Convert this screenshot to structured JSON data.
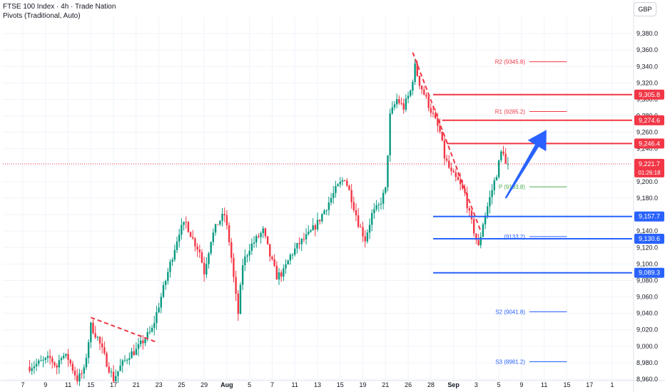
{
  "header": {
    "title": "FTSE 100 Index · 4h · Trade Nation",
    "indicator": "Pivots (Traditional, Auto)"
  },
  "currency_button": "GBP",
  "colors": {
    "up": "#089981",
    "down": "#f23645",
    "blue_level": "#2962ff",
    "red_level": "#f23645",
    "pivot_green": "#4caf50",
    "arrow": "#2962ff",
    "grid": "#f0f3fa",
    "axis_text": "#131722"
  },
  "chart_data": {
    "type": "candlestick",
    "title": "FTSE 100 Index · 4h · Trade Nation",
    "ylim": [
      8960,
      9400
    ],
    "y_ticks": [
      8960,
      8980,
      9000,
      9020,
      9040,
      9060,
      9080,
      9100,
      9120,
      9140,
      9160,
      9180,
      9200,
      9220,
      9240,
      9260,
      9280,
      9300,
      9320,
      9340,
      9360,
      9380
    ],
    "y_tick_labels": [
      "8,960.0",
      "8,980.0",
      "9,000.0",
      "9,020.0",
      "9,040.0",
      "9,060.0",
      "9,080.0",
      "9,100.0",
      "9,120.0",
      "9,140.0",
      "9,160.0",
      "9,180.0",
      "9,200.0",
      "9,220.0",
      "9,240.0",
      "9,260.0",
      "9,280.0",
      "9,300.0",
      "9,320.0",
      "9,340.0",
      "9,360.0",
      "9,380.0"
    ],
    "x_labels": [
      {
        "label": "7",
        "t": 0
      },
      {
        "label": "9",
        "t": 2
      },
      {
        "label": "11",
        "t": 4
      },
      {
        "label": "15",
        "t": 6
      },
      {
        "label": "17",
        "t": 8
      },
      {
        "label": "21",
        "t": 10
      },
      {
        "label": "23",
        "t": 12
      },
      {
        "label": "25",
        "t": 14
      },
      {
        "label": "29",
        "t": 16
      },
      {
        "label": "Aug",
        "t": 18
      },
      {
        "label": "5",
        "t": 20
      },
      {
        "label": "7",
        "t": 22
      },
      {
        "label": "11",
        "t": 24
      },
      {
        "label": "13",
        "t": 26
      },
      {
        "label": "15",
        "t": 28
      },
      {
        "label": "19",
        "t": 30
      },
      {
        "label": "21",
        "t": 32
      },
      {
        "label": "26",
        "t": 34
      },
      {
        "label": "28",
        "t": 36
      },
      {
        "label": "Sep",
        "t": 38
      },
      {
        "label": "3",
        "t": 40
      },
      {
        "label": "5",
        "t": 42
      },
      {
        "label": "9",
        "t": 44
      },
      {
        "label": "11",
        "t": 46
      },
      {
        "label": "15",
        "t": 48
      },
      {
        "label": "17",
        "t": 50
      },
      {
        "label": "1",
        "t": 52
      }
    ],
    "last_t": 42.8,
    "price_path": [
      [
        0.6,
        8975
      ],
      [
        2.4,
        8985
      ],
      [
        3.0,
        8975
      ],
      [
        3.4,
        8990
      ],
      [
        4.0,
        8985
      ],
      [
        4.8,
        8960
      ],
      [
        5.4,
        8970
      ],
      [
        6.0,
        9025
      ],
      [
        6.6,
        9010
      ],
      [
        7.4,
        8980
      ],
      [
        8.0,
        8960
      ],
      [
        8.6,
        8975
      ],
      [
        9.4,
        8990
      ],
      [
        10.0,
        8995
      ],
      [
        10.8,
        9010
      ],
      [
        11.4,
        9020
      ],
      [
        12.0,
        9050
      ],
      [
        12.6,
        9080
      ],
      [
        13.2,
        9110
      ],
      [
        13.8,
        9140
      ],
      [
        14.4,
        9150
      ],
      [
        15.0,
        9130
      ],
      [
        15.6,
        9115
      ],
      [
        16.0,
        9090
      ],
      [
        16.6,
        9130
      ],
      [
        17.2,
        9150
      ],
      [
        17.8,
        9160
      ],
      [
        18.3,
        9120
      ],
      [
        18.7,
        9070
      ],
      [
        19.0,
        9040
      ],
      [
        19.4,
        9100
      ],
      [
        20.0,
        9120
      ],
      [
        20.6,
        9130
      ],
      [
        21.2,
        9140
      ],
      [
        21.8,
        9110
      ],
      [
        22.4,
        9085
      ],
      [
        23.0,
        9090
      ],
      [
        23.6,
        9110
      ],
      [
        24.4,
        9125
      ],
      [
        25.2,
        9135
      ],
      [
        26.0,
        9150
      ],
      [
        26.8,
        9170
      ],
      [
        27.6,
        9190
      ],
      [
        28.4,
        9205
      ],
      [
        29.0,
        9180
      ],
      [
        29.6,
        9150
      ],
      [
        30.2,
        9130
      ],
      [
        30.8,
        9160
      ],
      [
        31.4,
        9170
      ],
      [
        32.0,
        9190
      ],
      [
        32.4,
        9280
      ],
      [
        33.0,
        9300
      ],
      [
        33.6,
        9290
      ],
      [
        34.2,
        9310
      ],
      [
        34.6,
        9340
      ],
      [
        35.0,
        9320
      ],
      [
        35.6,
        9300
      ],
      [
        36.2,
        9280
      ],
      [
        36.8,
        9260
      ],
      [
        37.2,
        9230
      ],
      [
        37.8,
        9210
      ],
      [
        38.4,
        9200
      ],
      [
        39.0,
        9185
      ],
      [
        39.4,
        9160
      ],
      [
        39.8,
        9140
      ],
      [
        40.2,
        9120
      ],
      [
        40.6,
        9150
      ],
      [
        41.2,
        9180
      ],
      [
        41.8,
        9210
      ],
      [
        42.2,
        9235
      ],
      [
        42.6,
        9240
      ],
      [
        42.8,
        9222
      ]
    ],
    "last_price": {
      "value": 9221.7,
      "label": "9,221.7",
      "countdown": "01:26:18"
    },
    "pivots": [
      {
        "name": "R2",
        "label": "R2 (9345.8)",
        "value": 9345.8,
        "color": "#f23645"
      },
      {
        "name": "R1",
        "label": "R1 (9285.2)",
        "value": 9285.2,
        "color": "#f23645"
      },
      {
        "name": "P",
        "label": "P (9193.8)",
        "value": 9193.8,
        "color": "#4caf50"
      },
      {
        "name": "S1",
        "label": "(9133.2)",
        "value": 9133.2,
        "color": "#2962ff"
      },
      {
        "name": "S2",
        "label": "S2 (9041.8)",
        "value": 9041.8,
        "color": "#2962ff"
      },
      {
        "name": "S3",
        "label": "S3 (8981.2)",
        "value": 8981.2,
        "color": "#2962ff"
      }
    ],
    "levels": [
      {
        "value": 9305.8,
        "label": "9,305.8",
        "color": "#f23645",
        "t_start": 36.2
      },
      {
        "value": 9274.6,
        "label": "9,274.6",
        "color": "#f23645",
        "t_start": 37.0
      },
      {
        "value": 9246.4,
        "label": "9,246.4",
        "color": "#f23645",
        "t_start": 37.4
      },
      {
        "value": 9157.7,
        "label": "9,157.7",
        "color": "#2962ff",
        "t_start": 36.2
      },
      {
        "value": 9130.6,
        "label": "9,130.6",
        "color": "#2962ff",
        "t_start": 36.2
      },
      {
        "value": 9089.3,
        "label": "9,089.3",
        "color": "#2962ff",
        "t_start": 36.2
      }
    ],
    "trendlines": [
      {
        "from": [
          6.0,
          9035
        ],
        "to": [
          11.8,
          9005
        ]
      },
      {
        "from": [
          34.4,
          9357
        ],
        "to": [
          40.4,
          9140
        ]
      }
    ],
    "arrow": {
      "from": [
        42.6,
        9180
      ],
      "to": [
        46.2,
        9263
      ]
    }
  }
}
